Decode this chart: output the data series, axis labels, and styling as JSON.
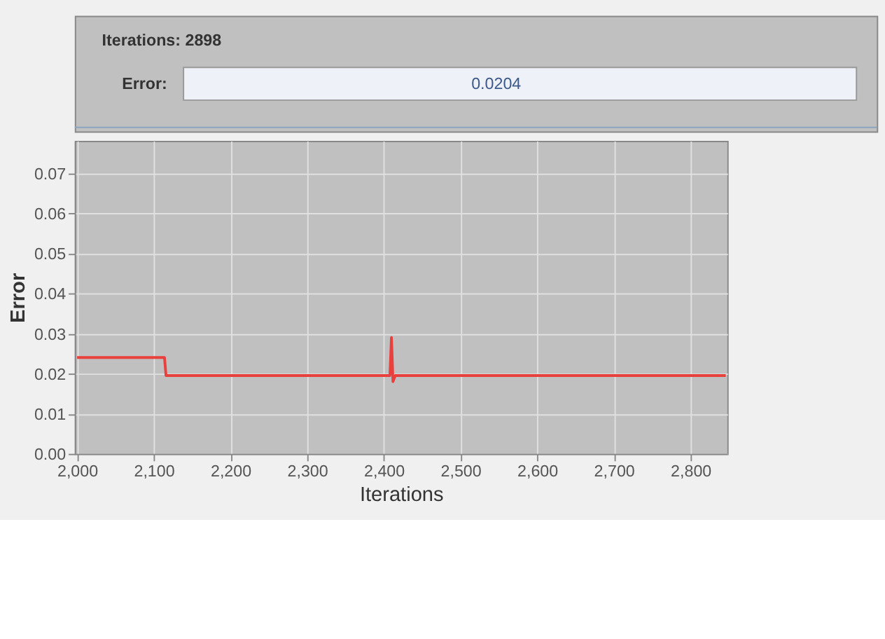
{
  "chart_data": {
    "type": "line",
    "xlabel": "Iterations",
    "ylabel": "Error",
    "annotations": [
      "Iterations: 2898",
      "Error:",
      "0.0204"
    ],
    "x": [
      2000,
      2050,
      2100,
      2114,
      2116,
      2150,
      2200,
      2300,
      2400,
      2408,
      2410,
      2412,
      2415,
      2440,
      2500,
      2600,
      2700,
      2800,
      2846
    ],
    "series": [
      {
        "color": "#e8403c",
        "values": [
          0.024,
          0.024,
          0.024,
          0.024,
          0.0195,
          0.0195,
          0.0195,
          0.0195,
          0.0195,
          0.0195,
          0.029,
          0.018,
          0.0195,
          0.0195,
          0.0195,
          0.0195,
          0.0195,
          0.0195,
          0.0195
        ]
      }
    ],
    "xlim": [
      1997,
      2848
    ],
    "xticks": [
      {
        "value": 2000,
        "label": "2,000"
      },
      {
        "value": 2100,
        "label": "2,100"
      },
      {
        "value": 2200,
        "label": "2,200"
      },
      {
        "value": 2300,
        "label": "2,300"
      },
      {
        "value": 2400,
        "label": "2,400"
      },
      {
        "value": 2500,
        "label": "2,500"
      },
      {
        "value": 2600,
        "label": "2,600"
      },
      {
        "value": 2700,
        "label": "2,700"
      },
      {
        "value": 2800,
        "label": "2,800"
      }
    ],
    "ylim": [
      0,
      0.078
    ],
    "yticks": [
      {
        "value": 0,
        "label": "0.00"
      },
      {
        "value": 0.01,
        "label": "0.01"
      },
      {
        "value": 0.02,
        "label": "0.02"
      },
      {
        "value": 0.03,
        "label": "0.03"
      },
      {
        "value": 0.04,
        "label": "0.04"
      },
      {
        "value": 0.05,
        "label": "0.05"
      },
      {
        "value": 0.06,
        "label": "0.06"
      },
      {
        "value": 0.07,
        "label": "0.07"
      }
    ],
    "grid": true,
    "line_style": "solid",
    "marker": "none"
  }
}
